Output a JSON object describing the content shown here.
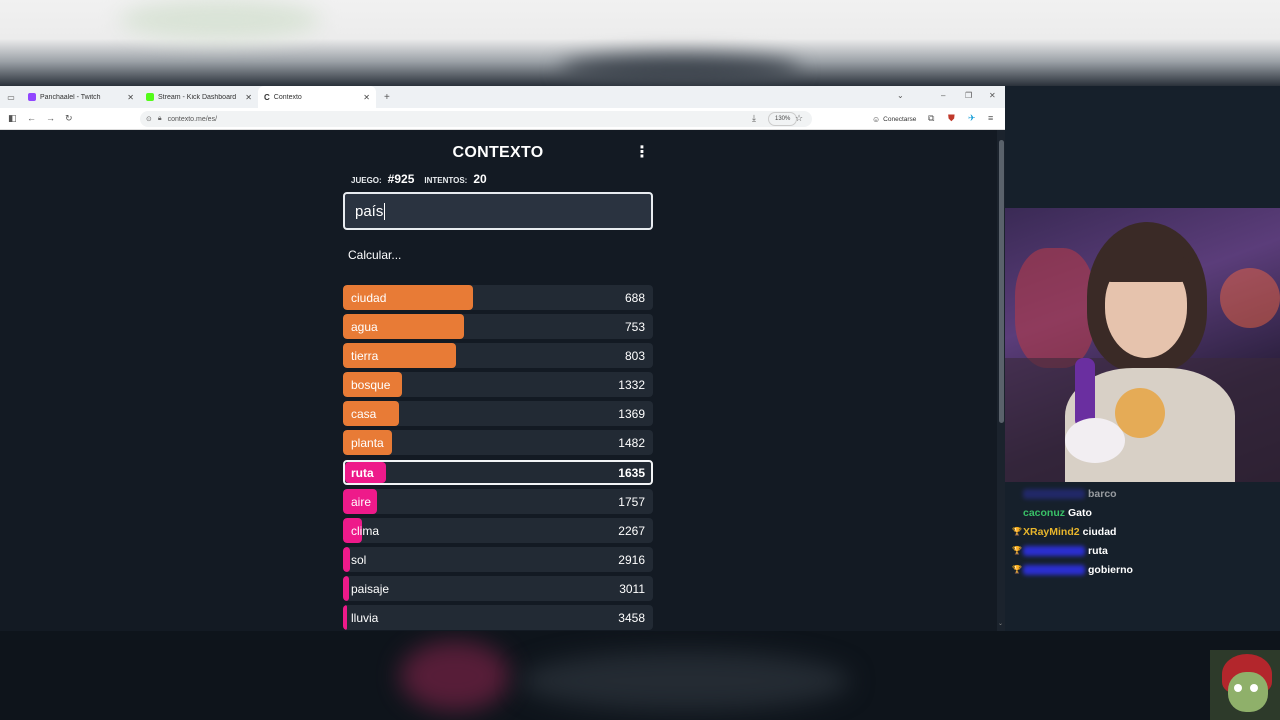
{
  "browser": {
    "tabs": [
      {
        "title": "Panchaalel - Twitch",
        "favicon_color": "#9146ff",
        "active": false
      },
      {
        "title": "Stream - Kick Dashboard",
        "favicon_color": "#53fc18",
        "active": false
      },
      {
        "title": "Contexto",
        "favicon_color": "#ffffff",
        "active": true
      }
    ],
    "url": "contexto.me/es/",
    "zoom": "130%",
    "connect_label": "Conectarse"
  },
  "game": {
    "title": "CONTEXTO",
    "game_label": "JUEGO:",
    "game_number": "#925",
    "attempts_label": "INTENTOS:",
    "attempts": "20",
    "input_value": "país",
    "status_text": "Calcular...",
    "colors": {
      "orange": "#e87b36",
      "pink": "#ee1a8a",
      "row_bg": "#222a34",
      "page_bg": "#131a23"
    },
    "guesses": [
      {
        "word": "ciudad",
        "distance": "688",
        "color": "orange",
        "fill": 0.42
      },
      {
        "word": "agua",
        "distance": "753",
        "color": "orange",
        "fill": 0.39
      },
      {
        "word": "tierra",
        "distance": "803",
        "color": "orange",
        "fill": 0.365
      },
      {
        "word": "bosque",
        "distance": "1332",
        "color": "orange",
        "fill": 0.19
      },
      {
        "word": "casa",
        "distance": "1369",
        "color": "orange",
        "fill": 0.182
      },
      {
        "word": "planta",
        "distance": "1482",
        "color": "orange",
        "fill": 0.158
      },
      {
        "word": "ruta",
        "distance": "1635",
        "color": "pink",
        "fill": 0.135,
        "current": true
      },
      {
        "word": "aire",
        "distance": "1757",
        "color": "pink",
        "fill": 0.11
      },
      {
        "word": "clima",
        "distance": "2267",
        "color": "pink",
        "fill": 0.06
      },
      {
        "word": "sol",
        "distance": "2916",
        "color": "pink",
        "fill": 0.022
      },
      {
        "word": "paisaje",
        "distance": "3011",
        "color": "pink",
        "fill": 0.018
      },
      {
        "word": "lluvia",
        "distance": "3458",
        "color": "pink",
        "fill": 0.014
      }
    ]
  },
  "chat": [
    {
      "user": "",
      "user_color": "#2b2f9a",
      "message": "barco",
      "badge": "",
      "faded": true
    },
    {
      "user": "caconuz",
      "user_color": "#39c067",
      "message": "Gato",
      "badge": ""
    },
    {
      "user": "XRayMind2",
      "user_color": "#e7b52c",
      "message": "ciudad",
      "badge": "🏆"
    },
    {
      "user": "",
      "user_color": "#2b2fd0",
      "message": "ruta",
      "badge": "🏆"
    },
    {
      "user": "",
      "user_color": "#2b2fd0",
      "message": "gobierno",
      "badge": "🏆"
    }
  ]
}
